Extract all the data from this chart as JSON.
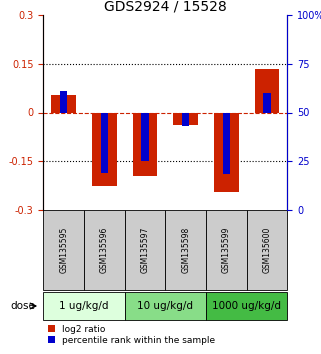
{
  "title": "GDS2924 / 15528",
  "samples": [
    "GSM135595",
    "GSM135596",
    "GSM135597",
    "GSM135598",
    "GSM135599",
    "GSM135600"
  ],
  "log2_ratio": [
    0.055,
    -0.225,
    -0.195,
    -0.038,
    -0.245,
    0.135
  ],
  "percentile_offset": [
    0.065,
    -0.185,
    -0.15,
    -0.04,
    -0.188,
    0.06
  ],
  "ylim": [
    -0.3,
    0.3
  ],
  "yticks_left": [
    -0.3,
    -0.15,
    0,
    0.15,
    0.3
  ],
  "yticks_right": [
    0,
    25,
    50,
    75,
    100
  ],
  "yticks_right_pos": [
    -0.3,
    -0.15,
    0.0,
    0.15,
    0.3
  ],
  "hlines_dotted": [
    0.15,
    -0.15
  ],
  "hline_dashed": 0.0,
  "color_red": "#cc2200",
  "color_blue": "#0000cc",
  "dose_groups": [
    {
      "label": "1 ug/kg/d",
      "samples": [
        0,
        1
      ],
      "color": "#ddffdd"
    },
    {
      "label": "10 ug/kg/d",
      "samples": [
        2,
        3
      ],
      "color": "#88dd88"
    },
    {
      "label": "1000 ug/kg/d",
      "samples": [
        4,
        5
      ],
      "color": "#44bb44"
    }
  ],
  "dose_label": "dose",
  "legend_red": "log2 ratio",
  "legend_blue": "percentile rank within the sample",
  "bg_color_samples": "#cccccc",
  "title_fontsize": 10,
  "tick_fontsize": 7,
  "sample_fontsize": 5.5,
  "dose_fontsize": 7.5,
  "legend_fontsize": 6.5
}
